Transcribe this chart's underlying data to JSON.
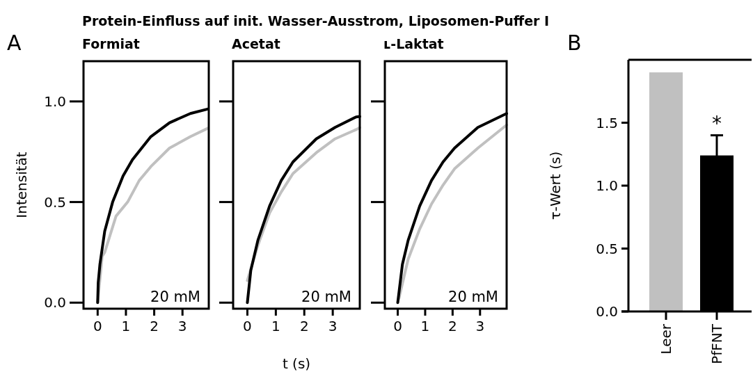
{
  "chart_data": [
    {
      "type": "line",
      "title": "Protein-Einfluss auf init. Wasser-Ausstrom, Liposomen-Puffer I",
      "subtitle": "Formiat",
      "ylabel": "Intensität",
      "xlim": [
        -0.5,
        3.93
      ],
      "ylim": [
        -0.03,
        1.2
      ],
      "xticks": [
        0,
        1,
        2,
        3
      ],
      "yticks": [
        {
          "value": 0,
          "label": "0.0"
        },
        {
          "value": 0.5,
          "label": "0.5"
        },
        {
          "value": 1,
          "label": "1.0"
        }
      ],
      "annotations": [
        "A",
        "20 mM"
      ],
      "series": [
        {
          "color": "#c0c0c0",
          "x": [
            0,
            0.16,
            0.25,
            0.65,
            1.06,
            1.47,
            1.88,
            2.54,
            3.28,
            3.89
          ],
          "values": [
            0,
            0.23,
            0.25,
            0.43,
            0.5,
            0.607,
            0.676,
            0.768,
            0.825,
            0.866
          ]
        },
        {
          "color": "#000000",
          "x": [
            0,
            0.02,
            0.08,
            0.25,
            0.53,
            0.9,
            1.23,
            1.88,
            2.54,
            3.28,
            3.89
          ],
          "values": [
            0,
            0.1,
            0.19,
            0.355,
            0.5,
            0.63,
            0.71,
            0.825,
            0.894,
            0.94,
            0.962
          ]
        }
      ]
    },
    {
      "type": "line",
      "title": "Acetat",
      "xlabel": "t (s)",
      "xlim": [
        -0.5,
        3.95
      ],
      "ylim": [
        -0.03,
        1.2
      ],
      "xticks": [
        0,
        1,
        2,
        3
      ],
      "yticks": [
        {
          "value": 0,
          "label": null
        },
        {
          "value": 0.5,
          "label": null
        },
        {
          "value": 1,
          "label": null
        }
      ],
      "tick_labels": "x",
      "annotations": [
        "20 mM"
      ],
      "series": [
        {
          "color": "#c0c0c0",
          "x": [
            0,
            0.37,
            0.78,
            1.19,
            1.6,
            2.42,
            3.08,
            3.82,
            3.95
          ],
          "values": [
            0.11,
            0.285,
            0.446,
            0.55,
            0.641,
            0.745,
            0.814,
            0.86,
            0.87
          ]
        },
        {
          "color": "#000000",
          "x": [
            0,
            0.12,
            0.37,
            0.78,
            1.19,
            1.6,
            2.42,
            3.08,
            3.82,
            3.95
          ],
          "values": [
            0,
            0.16,
            0.31,
            0.48,
            0.607,
            0.699,
            0.814,
            0.871,
            0.923,
            0.925
          ]
        }
      ]
    },
    {
      "type": "line",
      "title": "ʟ-Laktat",
      "xlim": [
        -0.47,
        3.97
      ],
      "ylim": [
        -0.03,
        1.2
      ],
      "xticks": [
        0,
        1,
        2,
        3
      ],
      "yticks": [
        {
          "value": 0,
          "label": null
        },
        {
          "value": 0.5,
          "label": null
        },
        {
          "value": 1,
          "label": null
        }
      ],
      "tick_labels": "x",
      "annotations": [
        "20 mM"
      ],
      "series": [
        {
          "color": "#c0c0c0",
          "x": [
            0.04,
            0.38,
            0.8,
            1.23,
            1.65,
            2.07,
            2.92,
            3.97
          ],
          "values": [
            0.02,
            0.216,
            0.366,
            0.49,
            0.584,
            0.665,
            0.768,
            0.883
          ]
        },
        {
          "color": "#000000",
          "x": [
            0,
            0.17,
            0.38,
            0.8,
            1.23,
            1.65,
            2.07,
            2.92,
            3.97
          ],
          "values": [
            0,
            0.19,
            0.31,
            0.48,
            0.607,
            0.699,
            0.768,
            0.871,
            0.94
          ]
        }
      ]
    },
    {
      "type": "bar",
      "ylabel": "τ-Wert (s)",
      "categories": [
        "Leer",
        "PfFNT"
      ],
      "values": [
        1.9,
        1.24
      ],
      "colors": [
        "#c0c0c0",
        "#000000"
      ],
      "errors": [
        null,
        0.16
      ],
      "ylim": [
        0,
        2.0
      ],
      "yticks": [
        {
          "value": 0,
          "label": "0.0"
        },
        {
          "value": 0.5,
          "label": "0.5"
        },
        {
          "value": 1,
          "label": "1.0"
        },
        {
          "value": 1.5,
          "label": "1.5"
        }
      ],
      "annotations": [
        "B",
        {
          "text": "*",
          "x": "PfFNT",
          "y": 1.4
        }
      ]
    }
  ]
}
